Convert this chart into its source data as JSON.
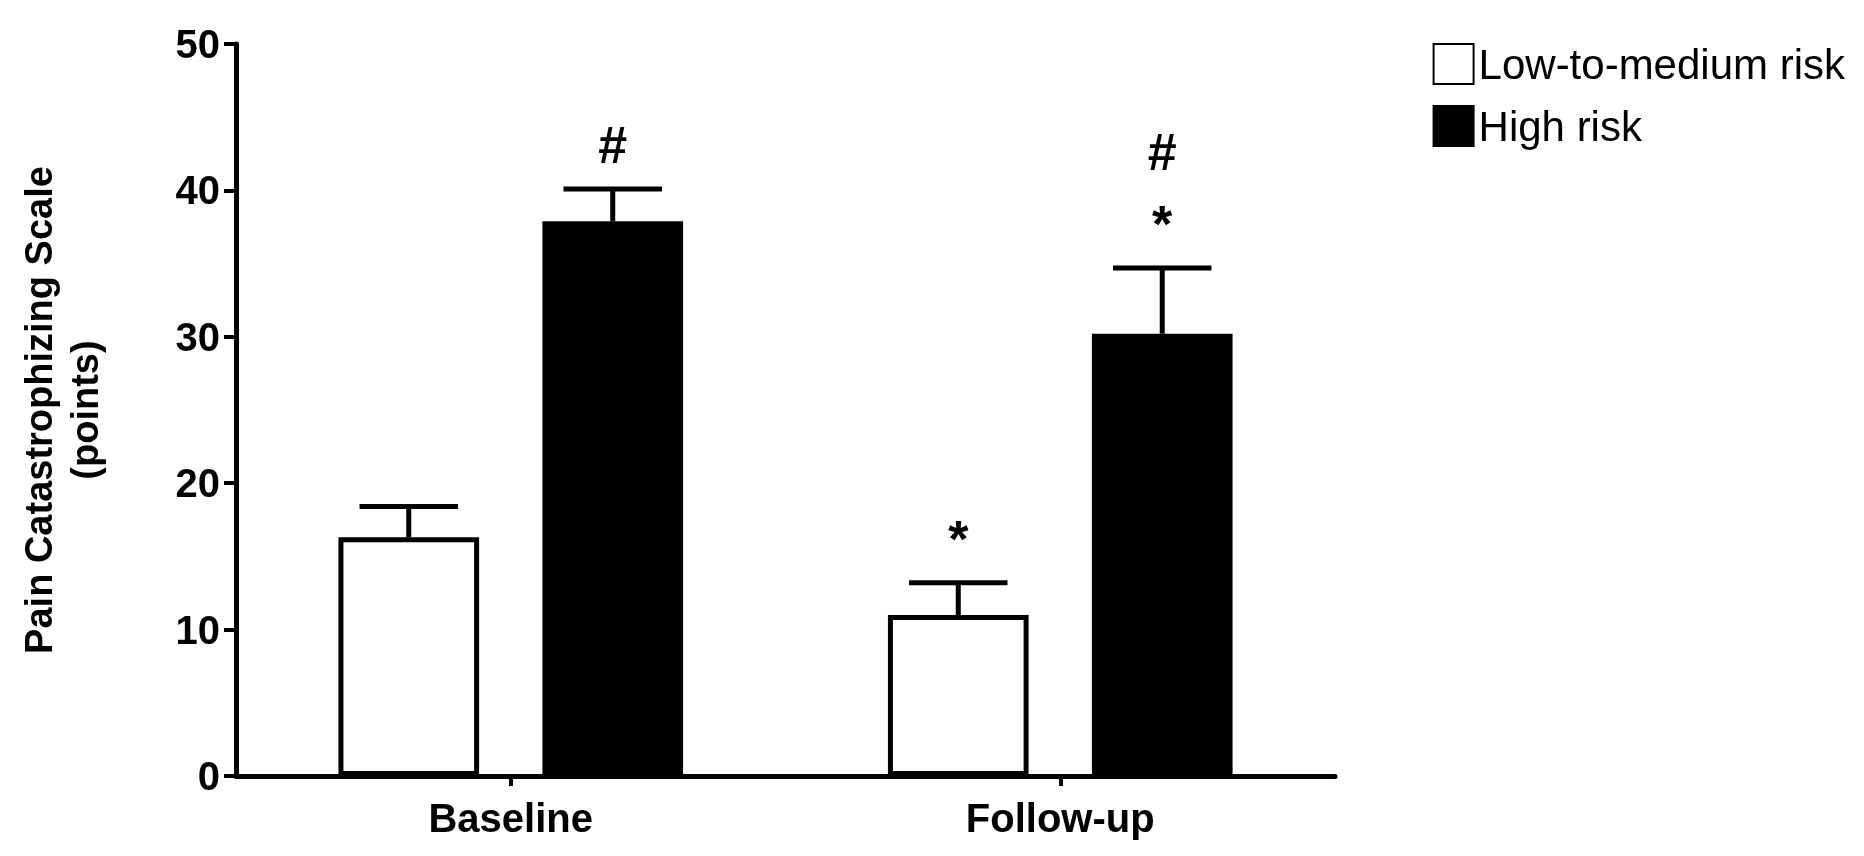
{
  "chart_data": {
    "type": "bar",
    "ylabel": "Pain Catastrophizing Scale\n(points)",
    "categories": [
      "Baseline",
      "Follow-up"
    ],
    "series": [
      {
        "name": "Low-to-medium risk",
        "color": "#ffffff",
        "values": [
          16.3,
          11.0
        ],
        "errors": [
          [
            16.3,
            18.4
          ],
          [
            11.0,
            13.2
          ]
        ]
      },
      {
        "name": "High risk",
        "color": "#000000",
        "values": [
          37.9,
          30.2
        ],
        "errors": [
          [
            37.9,
            40.1
          ],
          [
            30.2,
            34.7
          ]
        ]
      }
    ],
    "ylim": [
      0,
      50
    ],
    "yticks": [
      0,
      10,
      20,
      30,
      40,
      50
    ],
    "grid": false,
    "legend": "top right",
    "annotations": [
      "#",
      "*",
      "#",
      "*"
    ]
  }
}
